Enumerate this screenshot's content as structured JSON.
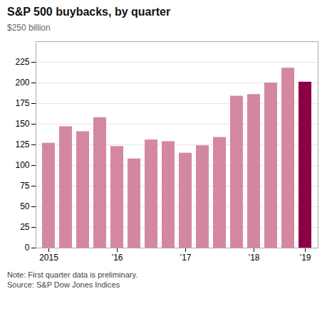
{
  "chart_data": {
    "type": "bar",
    "title": "S&P 500 buybacks, by quarter",
    "ylabel": "$250 billion",
    "annotations": [
      "Note: First quarter data is preliminary.",
      "Source: S&P Dow Jones Indices"
    ],
    "categories": [
      "2015",
      null,
      null,
      null,
      "’16",
      null,
      null,
      null,
      "’17",
      null,
      null,
      null,
      "’18",
      null,
      null,
      "’19"
    ],
    "values": [
      127,
      147,
      141,
      158,
      123,
      108,
      131,
      129,
      115,
      124,
      134,
      184,
      186,
      200,
      218,
      201
    ],
    "colors": [
      "#d4889f",
      "#d4889f",
      "#d4889f",
      "#d4889f",
      "#d4889f",
      "#d4889f",
      "#d4889f",
      "#d4889f",
      "#d4889f",
      "#d4889f",
      "#d4889f",
      "#d4889f",
      "#d4889f",
      "#d4889f",
      "#d4889f",
      "#8b0045"
    ],
    "ylim": [
      0,
      250
    ],
    "yticks": [
      0,
      25,
      50,
      75,
      100,
      125,
      150,
      175,
      200,
      225
    ],
    "grid": true
  }
}
